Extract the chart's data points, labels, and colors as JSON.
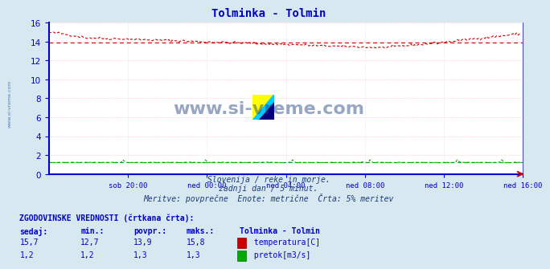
{
  "title": "Tolminka - Tolmin",
  "title_color": "#0000cc",
  "fig_bg_color": "#d8e8f0",
  "plot_bg_color": "#ffffff",
  "grid_color": "#ffaaaa",
  "grid_color2": "#ddddff",
  "axis_color": "#0000cc",
  "watermark_text": "www.si-vreme.com",
  "watermark_color": "#1a3a7a",
  "side_watermark_color": "#4466aa",
  "temp_color": "#cc0000",
  "flow_color": "#00aa00",
  "avg_temp": 13.9,
  "avg_flow": 1.25,
  "ylim": [
    0,
    16
  ],
  "yticks": [
    0,
    2,
    4,
    6,
    8,
    10,
    12,
    14,
    16
  ],
  "x_tick_labels": [
    "sob 20:00",
    "ned 00:00",
    "ned 04:00",
    "ned 08:00",
    "ned 12:00",
    "ned 16:00"
  ],
  "n_points": 288,
  "subtitle1": "Slovenija / reke in morje.",
  "subtitle2": "zadnji dan / 5 minut.",
  "subtitle3": "Meritve: povprečne  Enote: metrične  Črta: 5% meritev",
  "table_header": "ZGODOVINSKE VREDNOSTI (črtkana črta):",
  "col0_header": "sedaj:",
  "col_headers": [
    "min.:",
    "povpr.:",
    "maks.:"
  ],
  "station_label": "Tolminka - Tolmin",
  "temp_row": [
    "15,7",
    "12,7",
    "13,9",
    "15,8"
  ],
  "flow_row": [
    "1,2",
    "1,2",
    "1,3",
    "1,3"
  ],
  "temp_label": "temperatura[C]",
  "flow_label": "pretok[m3/s]"
}
